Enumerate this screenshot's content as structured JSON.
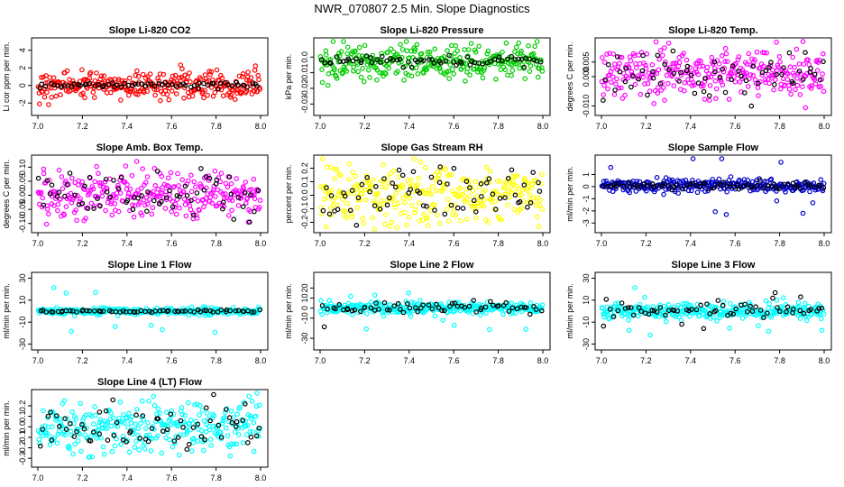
{
  "title": "NWR_070807  2.5 Min. Slope Diagnostics",
  "chart_data": [
    {
      "type": "scatter",
      "title": "Slope Li-820 CO2",
      "ylabel": "Li cor ppm per min.",
      "color": "#ff0000",
      "xlim": [
        7.0,
        8.0
      ],
      "ylim": [
        -3,
        5
      ],
      "xticks": [
        "7.0",
        "7.2",
        "7.4",
        "7.6",
        "7.8",
        "8.0"
      ],
      "yticks": [
        {
          "v": -2,
          "label": "-2"
        },
        {
          "v": 0,
          "label": "0"
        },
        {
          "v": 2,
          "label": "2"
        },
        {
          "v": 4,
          "label": "4"
        }
      ],
      "main": {
        "center": 0,
        "spread": 0.8,
        "outlier": 1.8
      },
      "overlay": {
        "center": 0,
        "spread": 0.2,
        "outlier": 0.3
      }
    },
    {
      "type": "scatter",
      "title": "Slope Li-820 Pressure",
      "ylabel": "kPa per min.",
      "color": "#00cc00",
      "xlim": [
        7.0,
        8.0
      ],
      "ylim": [
        -0.035,
        0.01
      ],
      "xticks": [
        "7.0",
        "7.2",
        "7.4",
        "7.6",
        "7.8",
        "8.0"
      ],
      "yticks": [
        {
          "v": 0.0,
          "label": "0.0"
        },
        {
          "v": -0.01,
          "label": "-0.01"
        },
        {
          "v": -0.02,
          "label": "-0.02"
        },
        {
          "v": -0.03,
          "label": "-0.03"
        }
      ],
      "main": {
        "center": -0.003,
        "spread": 0.005,
        "outlier": 0.012
      },
      "overlay": {
        "center": -0.002,
        "spread": 0.0015,
        "outlier": 0.003
      }
    },
    {
      "type": "scatter",
      "title": "Slope Li-820 Temp.",
      "ylabel": "degrees C per min.",
      "color": "#ff00ff",
      "xlim": [
        7.0,
        8.0
      ],
      "ylim": [
        -0.012,
        0.012
      ],
      "xticks": [
        "7.0",
        "7.2",
        "7.4",
        "7.6",
        "7.8",
        "8.0"
      ],
      "yticks": [
        {
          "v": 0.005,
          "label": "0.005"
        },
        {
          "v": 0.0,
          "label": "0.000"
        },
        {
          "v": -0.01,
          "label": "-0.010"
        }
      ],
      "main": {
        "center": 0.001,
        "spread": 0.004,
        "outlier": 0.009
      },
      "overlay": {
        "center": 0.0,
        "spread": 0.0035,
        "outlier": 0.005
      }
    },
    {
      "type": "scatter",
      "title": "Slope Amb. Box Temp.",
      "ylabel": "degrees C per min.",
      "color": "#ff00ff",
      "xlim": [
        7.0,
        8.0
      ],
      "ylim": [
        -0.12,
        0.13
      ],
      "xticks": [
        "7.0",
        "7.2",
        "7.4",
        "7.6",
        "7.8",
        "8.0"
      ],
      "yticks": [
        {
          "v": 0.1,
          "label": "0.10"
        },
        {
          "v": 0.05,
          "label": "0.05"
        },
        {
          "v": 0.0,
          "label": "0.00"
        },
        {
          "v": -0.05,
          "label": "-0.05"
        },
        {
          "v": -0.1,
          "label": "-0.10"
        }
      ],
      "main": {
        "center": 0.0,
        "spread": 0.045,
        "outlier": 0.1
      },
      "overlay": {
        "center": 0.0,
        "spread": 0.04,
        "outlier": 0.07
      }
    },
    {
      "type": "scatter",
      "title": "Slope Gas Stream RH",
      "ylabel": "percent per min.",
      "color": "#ffff00",
      "xlim": [
        7.0,
        8.0
      ],
      "ylim": [
        -0.25,
        0.27
      ],
      "xticks": [
        "7.0",
        "7.2",
        "7.4",
        "7.6",
        "7.8",
        "8.0"
      ],
      "yticks": [
        {
          "v": 0.2,
          "label": "0.2"
        },
        {
          "v": 0.1,
          "label": "0.1"
        },
        {
          "v": 0.0,
          "label": "0.0"
        },
        {
          "v": -0.1,
          "label": "-0.1"
        },
        {
          "v": -0.2,
          "label": "-0.2"
        }
      ],
      "main": {
        "center": 0.0,
        "spread": 0.1,
        "outlier": 0.22
      },
      "overlay": {
        "center": 0.0,
        "spread": 0.09,
        "outlier": 0.15
      }
    },
    {
      "type": "scatter",
      "title": "Slope Sample Flow",
      "ylabel": "ml/min per min.",
      "color": "#0000cc",
      "xlim": [
        7.0,
        8.0
      ],
      "ylim": [
        -3.5,
        2.3
      ],
      "xticks": [
        "7.0",
        "7.2",
        "7.4",
        "7.6",
        "7.8",
        "8.0"
      ],
      "yticks": [
        {
          "v": 1,
          "label": "1"
        },
        {
          "v": 0,
          "label": "0"
        },
        {
          "v": -1,
          "label": "-1"
        },
        {
          "v": -2,
          "label": "-2"
        },
        {
          "v": -3,
          "label": "-3"
        }
      ],
      "main": {
        "center": 0.1,
        "spread": 0.25,
        "outlier": 2.5
      },
      "overlay": {
        "center": 0.1,
        "spread": 0.15,
        "outlier": 0.3
      }
    },
    {
      "type": "scatter",
      "title": "Slope Line 1 Flow",
      "ylabel": "ml/min per min.",
      "color": "#00ffff",
      "xlim": [
        7.0,
        8.0
      ],
      "ylim": [
        -32,
        32
      ],
      "xticks": [
        "7.0",
        "7.2",
        "7.4",
        "7.6",
        "7.8",
        "8.0"
      ],
      "yticks": [
        {
          "v": 30,
          "label": "30"
        },
        {
          "v": 10,
          "label": "10"
        },
        {
          "v": -10,
          "label": "-10"
        },
        {
          "v": -30,
          "label": "-30"
        }
      ],
      "main": {
        "center": 0,
        "spread": 1.5,
        "outlier": 22
      },
      "overlay": {
        "center": 0,
        "spread": 0.6,
        "outlier": 1
      }
    },
    {
      "type": "scatter",
      "title": "Slope Line 2 Flow",
      "ylabel": "ml/min per min.",
      "color": "#00ffff",
      "xlim": [
        7.0,
        8.0
      ],
      "ylim": [
        -38,
        32
      ],
      "xticks": [
        "7.0",
        "7.2",
        "7.4",
        "7.6",
        "7.8",
        "8.0"
      ],
      "yticks": [
        {
          "v": 20,
          "label": "20"
        },
        {
          "v": 10,
          "label": "10"
        },
        {
          "v": 0,
          "label": "0"
        },
        {
          "v": -10,
          "label": "-10"
        },
        {
          "v": -30,
          "label": "-30"
        }
      ],
      "main": {
        "center": 0,
        "spread": 3,
        "outlier": 22
      },
      "overlay": {
        "center": 0,
        "spread": 3,
        "outlier": 20
      }
    },
    {
      "type": "scatter",
      "title": "Slope Line 3 Flow",
      "ylabel": "ml/min per min.",
      "color": "#00ffff",
      "xlim": [
        7.0,
        8.0
      ],
      "ylim": [
        -32,
        32
      ],
      "xticks": [
        "7.0",
        "7.2",
        "7.4",
        "7.6",
        "7.8",
        "8.0"
      ],
      "yticks": [
        {
          "v": 30,
          "label": "30"
        },
        {
          "v": 10,
          "label": "10"
        },
        {
          "v": -10,
          "label": "-10"
        },
        {
          "v": -30,
          "label": "-30"
        }
      ],
      "main": {
        "center": 0,
        "spread": 3.5,
        "outlier": 24
      },
      "overlay": {
        "center": 0,
        "spread": 3,
        "outlier": 18
      }
    },
    {
      "type": "scatter",
      "title": "Slope Line 4 (LT) Flow",
      "ylabel": "ml/min per min.",
      "color": "#00ffff",
      "xlim": [
        7.0,
        8.0
      ],
      "ylim": [
        -0.35,
        0.32
      ],
      "xticks": [
        "7.0",
        "7.2",
        "7.4",
        "7.6",
        "7.8",
        "8.0"
      ],
      "yticks": [
        {
          "v": 0.2,
          "label": "0.2"
        },
        {
          "v": 0.1,
          "label": "0.1"
        },
        {
          "v": 0.0,
          "label": "0.0"
        },
        {
          "v": -0.1,
          "label": "-0.1"
        },
        {
          "v": -0.2,
          "label": "-0.2"
        },
        {
          "v": -0.3,
          "label": "-0.3"
        }
      ],
      "main": {
        "center": 0.0,
        "spread": 0.12,
        "outlier": 0.26
      },
      "overlay": {
        "center": 0.0,
        "spread": 0.12,
        "outlier": 0.22
      }
    }
  ]
}
